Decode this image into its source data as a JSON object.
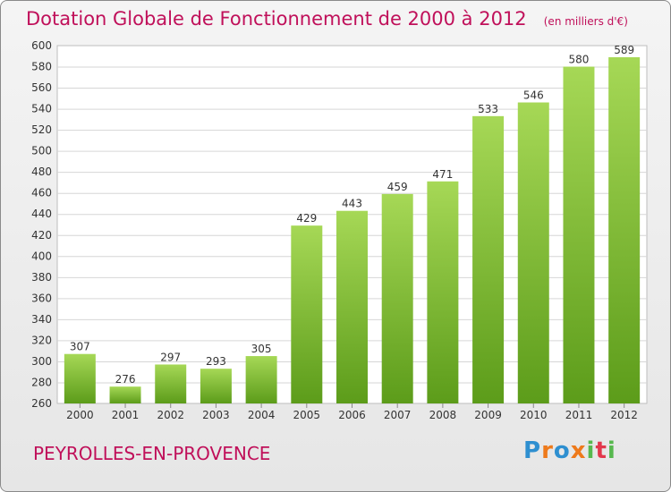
{
  "header": {
    "title": "Dotation Globale de Fonctionnement de 2000 à 2012",
    "subtitle": "(en milliers d'€)"
  },
  "footer": {
    "commune": "PEYROLLES-EN-PROVENCE",
    "logo": [
      "P",
      "r",
      "o",
      "x",
      "i",
      "t",
      "i"
    ]
  },
  "chart_data": {
    "type": "bar",
    "title": "Dotation Globale de Fonctionnement de 2000 à 2012",
    "subtitle": "(en milliers d'€)",
    "categories": [
      "2000",
      "2001",
      "2002",
      "2003",
      "2004",
      "2005",
      "2006",
      "2007",
      "2008",
      "2009",
      "2010",
      "2011",
      "2012"
    ],
    "values": [
      307,
      276,
      297,
      293,
      305,
      429,
      443,
      459,
      471,
      533,
      546,
      580,
      589
    ],
    "xlabel": "",
    "ylabel": "",
    "ylim": [
      260,
      600
    ],
    "yticks": [
      260,
      280,
      300,
      320,
      340,
      360,
      380,
      400,
      420,
      440,
      460,
      480,
      500,
      520,
      540,
      560,
      580,
      600
    ],
    "grid": true,
    "bar_color_top": "#a6d856",
    "bar_color_bottom": "#5c9c1a"
  }
}
